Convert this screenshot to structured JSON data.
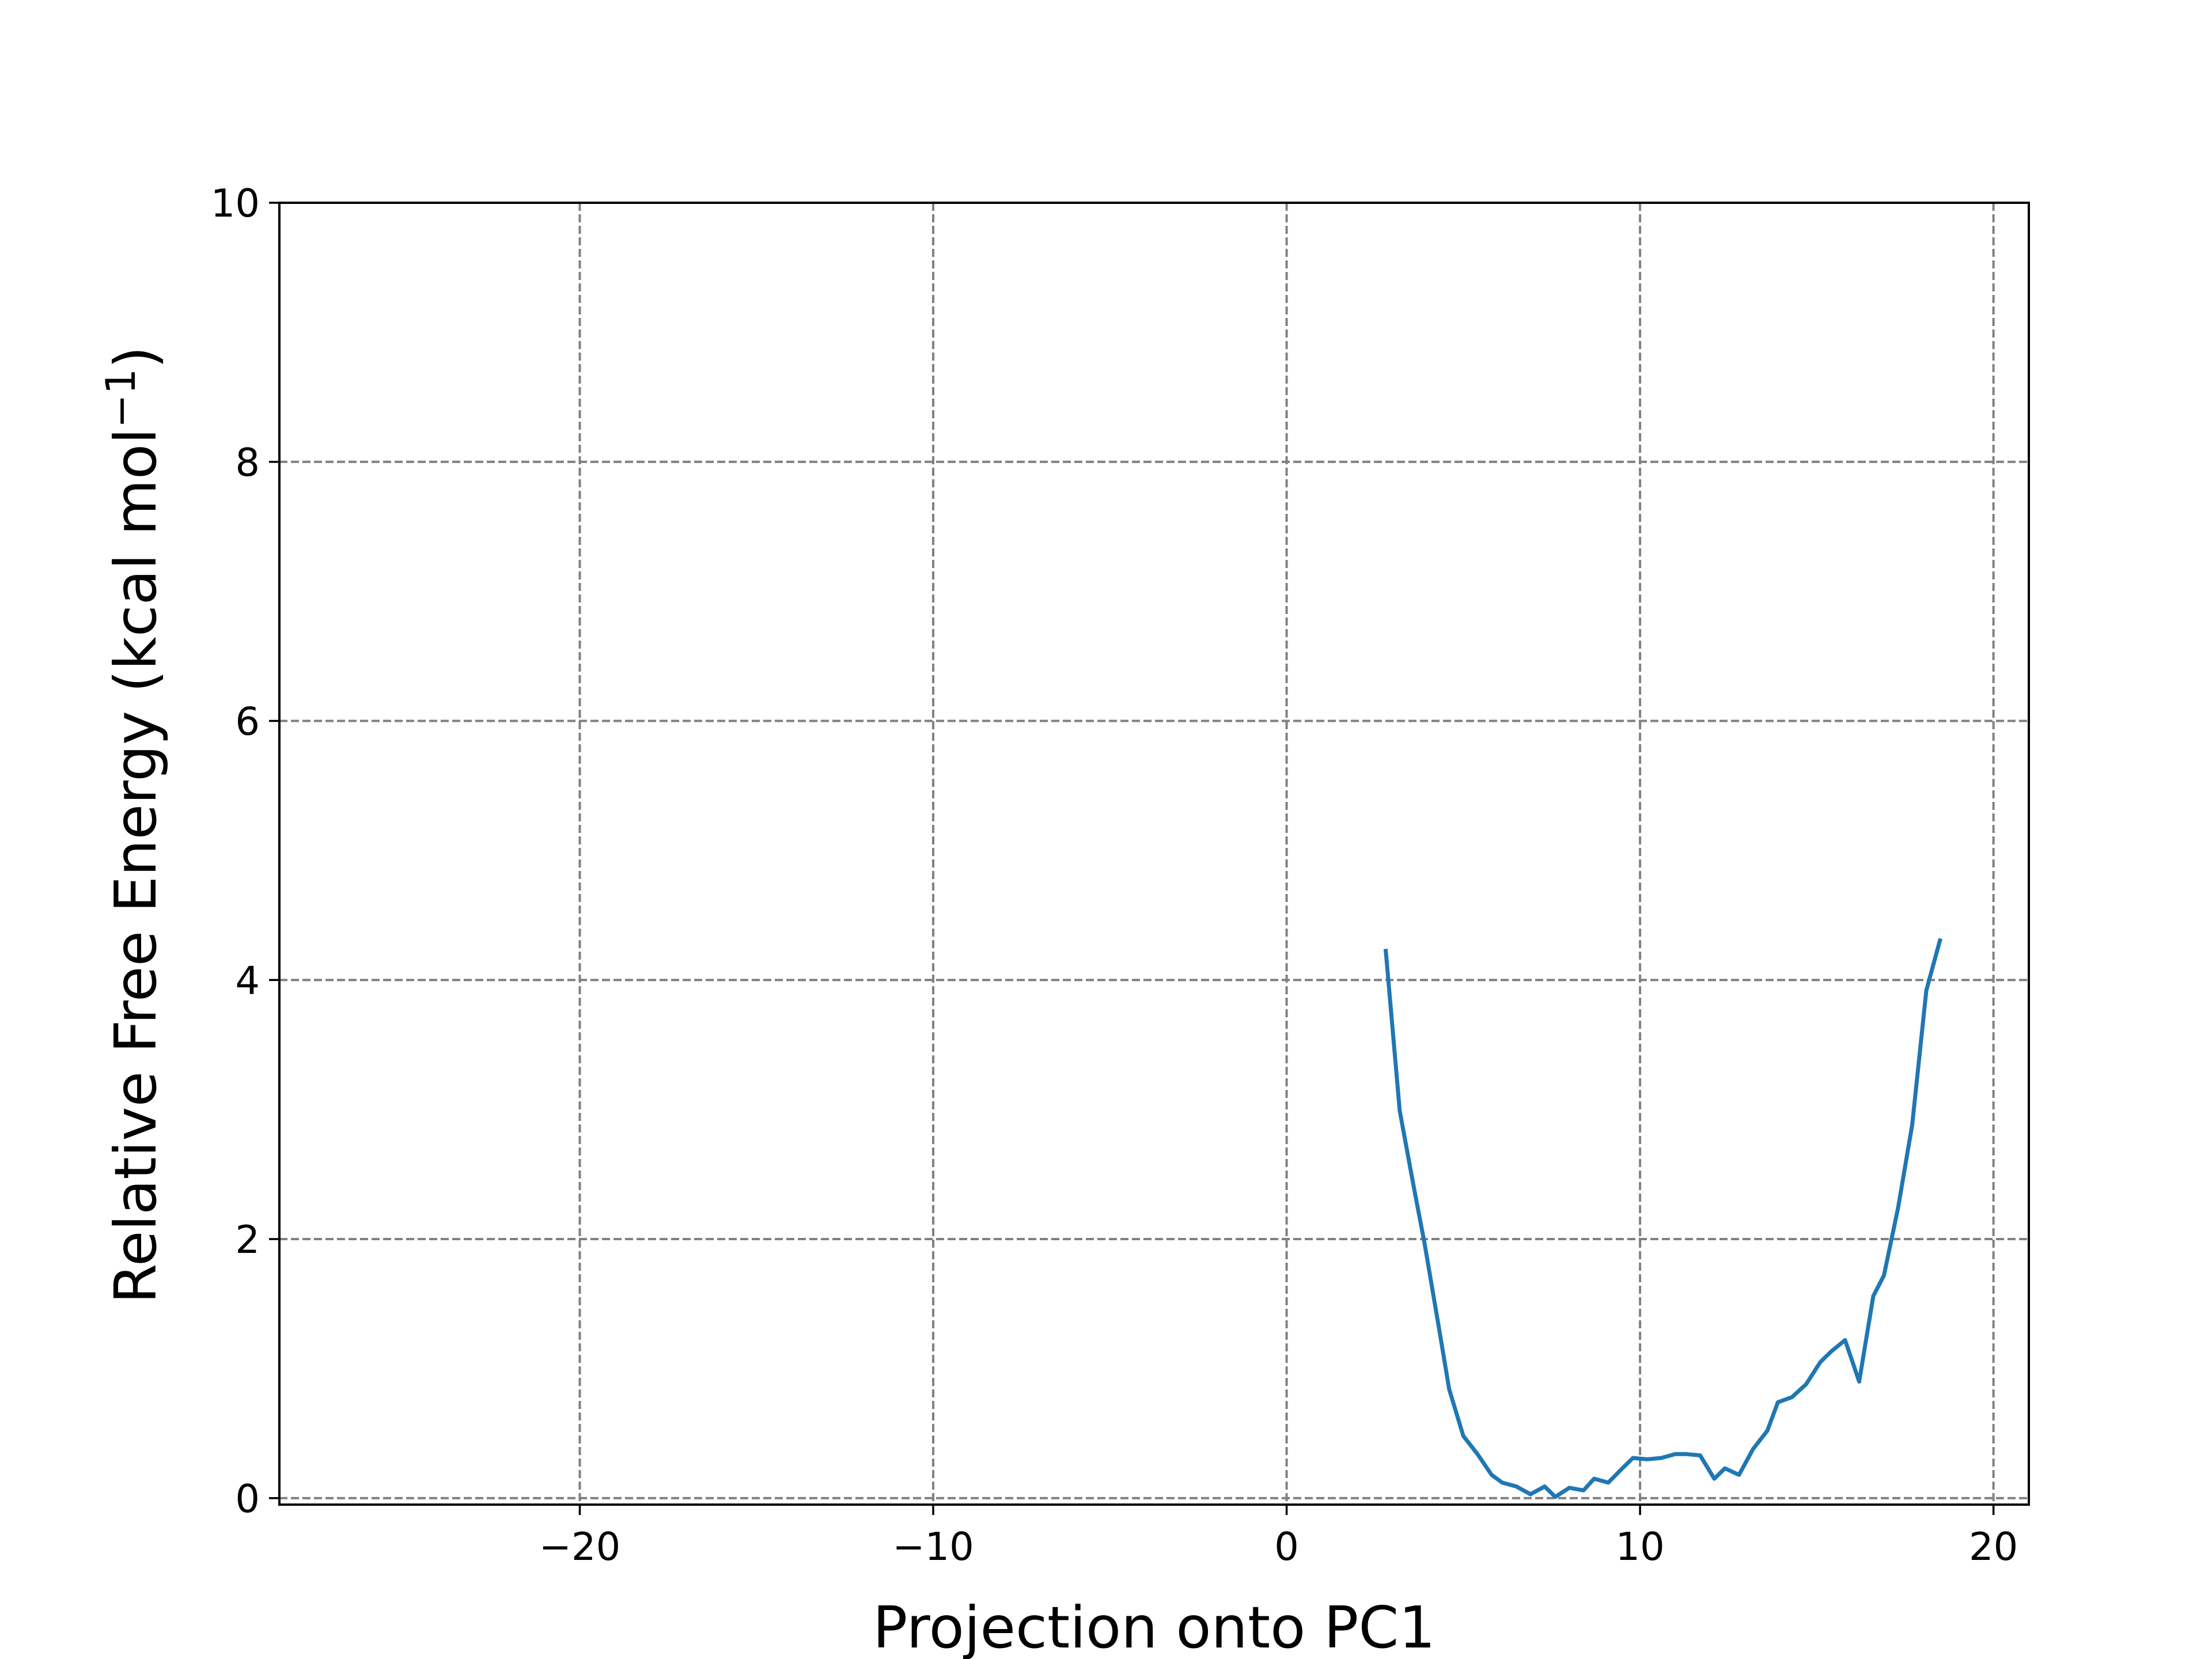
{
  "colors": {
    "series": "#1f77b4",
    "grid": "#808080",
    "axis": "#000000"
  },
  "chart_data": {
    "type": "line",
    "title": "",
    "xlabel": "Projection onto PC1",
    "ylabel_main": "Relative Free Energy (kcal mol",
    "ylabel_sup": "−1",
    "ylabel_close": ")",
    "xlim": [
      -28.5,
      21
    ],
    "ylim": [
      -0.05,
      10
    ],
    "grid": true,
    "legend": "none",
    "x_ticks": [
      {
        "value": -20,
        "label": "−20"
      },
      {
        "value": -10,
        "label": "−10"
      },
      {
        "value": 0,
        "label": "0"
      },
      {
        "value": 10,
        "label": "10"
      },
      {
        "value": 20,
        "label": "20"
      }
    ],
    "y_ticks": [
      {
        "value": 0,
        "label": "0"
      },
      {
        "value": 2,
        "label": "2"
      },
      {
        "value": 4,
        "label": "4"
      },
      {
        "value": 6,
        "label": "6"
      },
      {
        "value": 8,
        "label": "8"
      },
      {
        "value": 10,
        "label": "10"
      }
    ],
    "series": [
      {
        "x": [
          2.8,
          3.2,
          3.6,
          3.9,
          4.3,
          4.6,
          5.0,
          5.4,
          5.8,
          6.1,
          6.5,
          6.9,
          7.3,
          7.6,
          8.0,
          8.4,
          8.7,
          9.1,
          9.5,
          9.8,
          10.2,
          10.6,
          11.0,
          11.3,
          11.7,
          12.1,
          12.4,
          12.8,
          13.2,
          13.6,
          13.9,
          14.3,
          14.7,
          15.1,
          15.4,
          15.8,
          16.2,
          16.6,
          16.9,
          17.3,
          17.7,
          18.1,
          18.5
        ],
        "y": [
          4.24,
          2.99,
          2.4,
          1.97,
          1.33,
          0.84,
          0.48,
          0.34,
          0.18,
          0.12,
          0.09,
          0.03,
          0.09,
          0.01,
          0.08,
          0.06,
          0.15,
          0.12,
          0.23,
          0.31,
          0.3,
          0.31,
          0.34,
          0.34,
          0.33,
          0.15,
          0.23,
          0.18,
          0.38,
          0.52,
          0.74,
          0.78,
          0.88,
          1.05,
          1.13,
          1.22,
          0.9,
          1.56,
          1.72,
          2.24,
          2.88,
          3.92,
          4.32
        ]
      }
    ]
  }
}
